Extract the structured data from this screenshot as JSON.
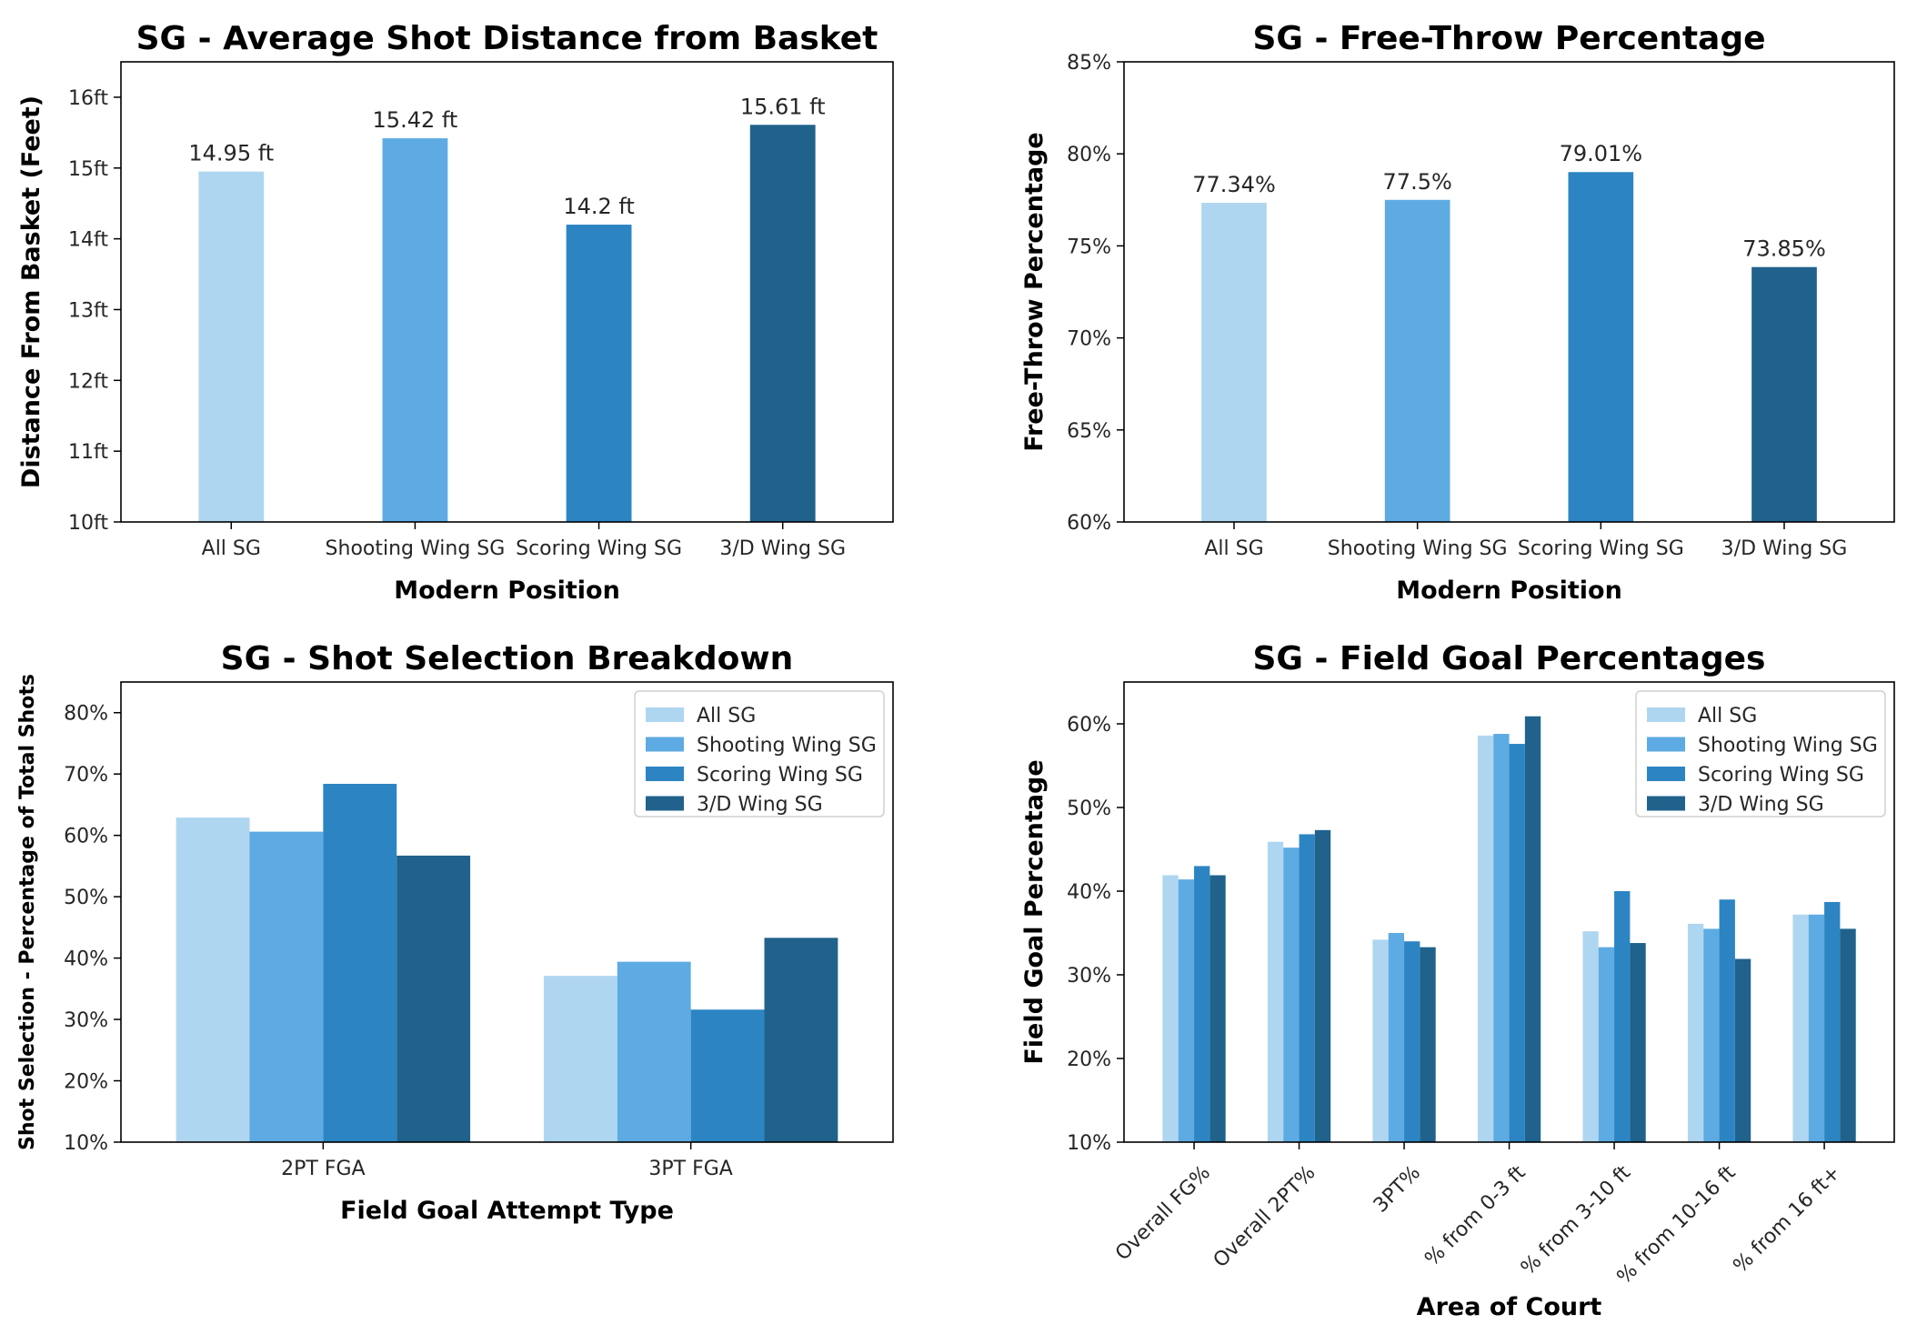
{
  "colors": {
    "All SG": "#afd6f0",
    "Shooting Wing SG": "#5dabe2",
    "Scoring Wing SG": "#2c85c2",
    "3/D Wing SG": "#20628c"
  },
  "chart_data": [
    {
      "type": "bar",
      "title": "SG - Average Shot Distance from Basket",
      "xlabel": "Modern Position",
      "ylabel": "Distance From Basket (Feet)",
      "categories": [
        "All SG",
        "Shooting Wing SG",
        "Scoring Wing SG",
        "3/D Wing SG"
      ],
      "values": [
        14.95,
        15.42,
        14.2,
        15.61
      ],
      "data_labels": [
        "14.95 ft",
        "15.42 ft",
        "14.2 ft",
        "15.61 ft"
      ],
      "ylim": [
        10,
        16.5
      ],
      "yticks": [
        10,
        11,
        12,
        13,
        14,
        15,
        16
      ],
      "ytick_labels": [
        "10ft",
        "11ft",
        "12ft",
        "13ft",
        "14ft",
        "15ft",
        "16ft"
      ],
      "grid": false
    },
    {
      "type": "bar",
      "title": "SG - Free-Throw Percentage",
      "xlabel": "Modern Position",
      "ylabel": "Free-Throw Percentage",
      "categories": [
        "All SG",
        "Shooting Wing SG",
        "Scoring Wing SG",
        "3/D Wing SG"
      ],
      "values": [
        77.34,
        77.5,
        79.01,
        73.85
      ],
      "data_labels": [
        "77.34%",
        "77.5%",
        "79.01%",
        "73.85%"
      ],
      "ylim": [
        60,
        85
      ],
      "yticks": [
        60,
        65,
        70,
        75,
        80,
        85
      ],
      "ytick_labels": [
        "60%",
        "65%",
        "70%",
        "75%",
        "80%",
        "85%"
      ],
      "grid": false
    },
    {
      "type": "bar",
      "title": "SG - Shot Selection Breakdown",
      "xlabel": "Field Goal Attempt Type",
      "ylabel": "Shot Selection - Percentage of Total Shots",
      "categories": [
        "2PT FGA",
        "3PT FGA"
      ],
      "series": [
        {
          "name": "All SG",
          "values": [
            62.9,
            37.1
          ]
        },
        {
          "name": "Shooting Wing SG",
          "values": [
            60.6,
            39.4
          ]
        },
        {
          "name": "Scoring Wing SG",
          "values": [
            68.4,
            31.6
          ]
        },
        {
          "name": "3/D Wing SG",
          "values": [
            56.7,
            43.3
          ]
        }
      ],
      "ylim": [
        10,
        85
      ],
      "yticks": [
        10,
        20,
        30,
        40,
        50,
        60,
        70,
        80
      ],
      "ytick_labels": [
        "10%",
        "20%",
        "30%",
        "40%",
        "50%",
        "60%",
        "70%",
        "80%"
      ],
      "legend": "top-right",
      "grid": false
    },
    {
      "type": "bar",
      "title": "SG - Field Goal Percentages",
      "xlabel": "Area of Court",
      "ylabel": "Field Goal Percentage",
      "categories": [
        "Overall FG%",
        "Overall 2PT%",
        "3PT%",
        "% from 0-3 ft",
        "% from 3-10 ft",
        "% from 10-16 ft",
        "% from 16 ft+"
      ],
      "series": [
        {
          "name": "All SG",
          "values": [
            41.9,
            45.9,
            34.2,
            58.6,
            35.2,
            36.1,
            37.2
          ]
        },
        {
          "name": "Shooting Wing SG",
          "values": [
            41.4,
            45.2,
            35.0,
            58.8,
            33.3,
            35.5,
            37.2
          ]
        },
        {
          "name": "Scoring Wing SG",
          "values": [
            43.0,
            46.8,
            34.0,
            57.6,
            40.0,
            39.0,
            38.7
          ]
        },
        {
          "name": "3/D Wing SG",
          "values": [
            41.9,
            47.3,
            33.3,
            60.9,
            33.8,
            31.9,
            35.5
          ]
        }
      ],
      "ylim": [
        10,
        65
      ],
      "yticks": [
        10,
        20,
        30,
        40,
        50,
        60
      ],
      "ytick_labels": [
        "10%",
        "20%",
        "30%",
        "40%",
        "50%",
        "60%"
      ],
      "legend": "top-right",
      "grid": false
    }
  ]
}
